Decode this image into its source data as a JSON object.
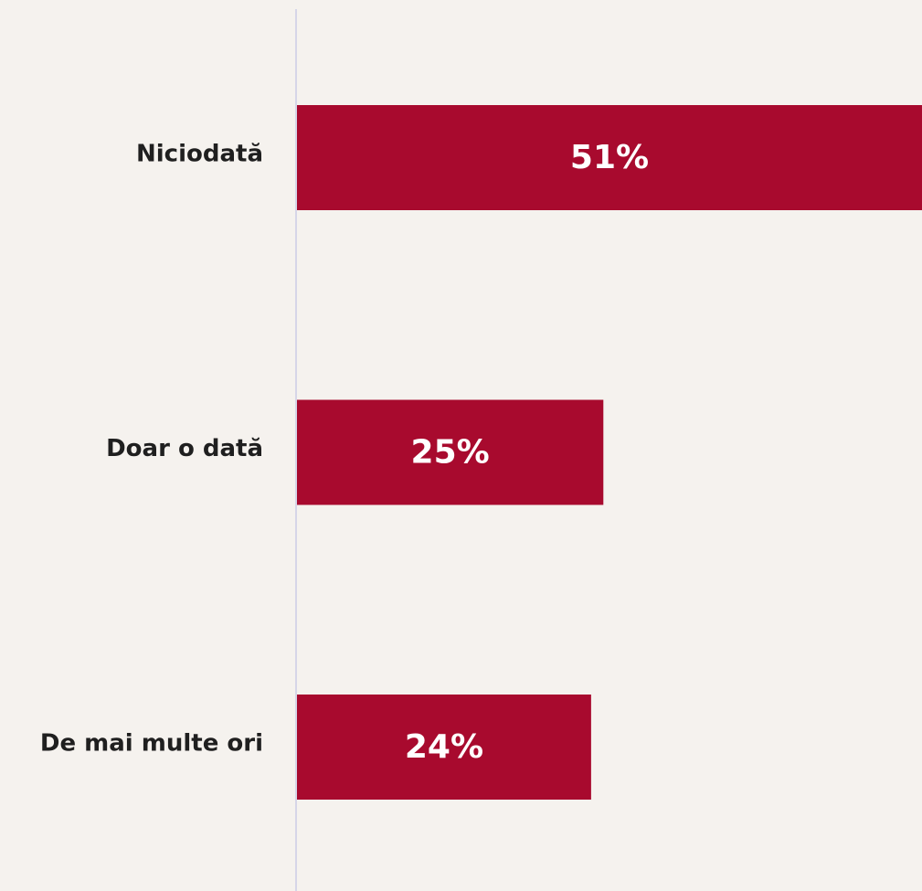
{
  "chart_data": {
    "type": "bar",
    "orientation": "horizontal",
    "categories": [
      "Niciodată",
      "Doar o dată",
      "De mai multe ori"
    ],
    "values": [
      51,
      25,
      24
    ],
    "value_labels": [
      "51%",
      "25%",
      "24%"
    ],
    "unit": "%",
    "title": "",
    "xlabel": "",
    "ylabel": "",
    "xlim": [
      0,
      51
    ],
    "grid": false,
    "legend": "none",
    "colors": {
      "bar": "#a80a2e",
      "value_text": "#ffffff",
      "category_text": "#1f1f1f",
      "axis_line": "#d6d6e8",
      "background": "#f5f2ee"
    }
  }
}
